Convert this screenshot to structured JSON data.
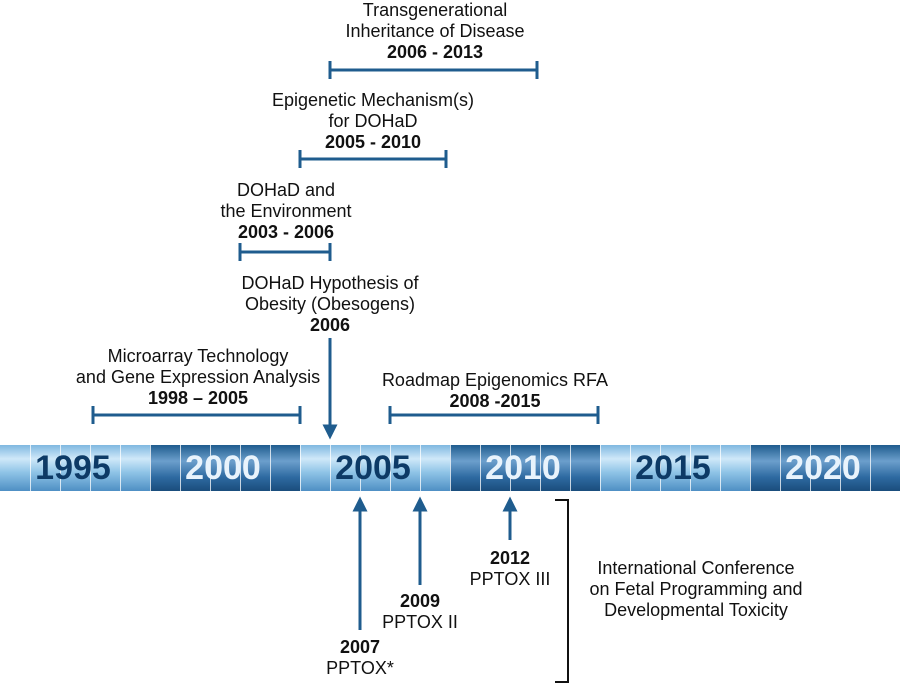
{
  "timeline": {
    "years": [
      "1995",
      "2000",
      "2005",
      "2010",
      "2015",
      "2020"
    ]
  },
  "events_above": [
    {
      "lines": [
        "Transgenerational",
        "Inheritance of Disease"
      ],
      "years": "2006 - 2013"
    },
    {
      "lines": [
        "Epigenetic Mechanism(s)",
        "for DOHaD"
      ],
      "years": "2005 - 2010"
    },
    {
      "lines": [
        "DOHaD and",
        "the Environment"
      ],
      "years": "2003 - 2006"
    },
    {
      "lines": [
        "DOHaD Hypothesis of",
        "Obesity (Obesogens)"
      ],
      "years": "2006"
    },
    {
      "lines": [
        "Microarray Technology",
        "and Gene Expression Analysis"
      ],
      "years": "1998 – 2005"
    },
    {
      "lines": [
        "Roadmap Epigenomics RFA"
      ],
      "years": "2008 -2015"
    }
  ],
  "events_below": [
    {
      "year": "2007",
      "name": "PPTOX*"
    },
    {
      "year": "2009",
      "name": "PPTOX II"
    },
    {
      "year": "2012",
      "name": "PPTOX III"
    }
  ],
  "conference": {
    "lines": [
      "International Conference",
      "on Fetal Programming and",
      "Developmental Toxicity"
    ]
  },
  "colors": {
    "line": "#1f5c8e",
    "bar_light": "#cfe8f9",
    "bar_dark": "#1f5c8e",
    "year_dark": "#0d3a66",
    "year_light": "#e8f3fc"
  }
}
